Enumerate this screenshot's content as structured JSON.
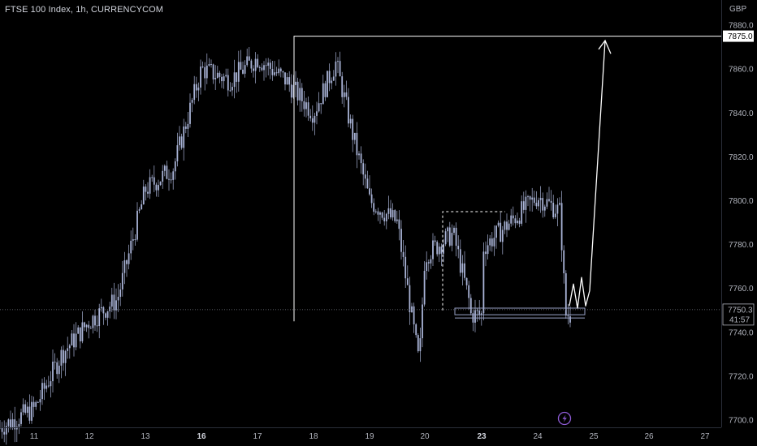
{
  "header": {
    "title": "FTSE 100 Index, 1h, CURRENCYCOM"
  },
  "colors": {
    "background": "#000000",
    "candle": "#a9b3d6",
    "line": "#ffffff",
    "label_bg": "#ffffff",
    "label_text": "#000000",
    "axis_text": "#b2b5be",
    "replay_icon": "#8e5bd6"
  },
  "icons": {
    "replay": "lightning-bolt-icon"
  },
  "chart_data": {
    "type": "candlestick",
    "currency": "GBP",
    "ylim": [
      7690,
      7890
    ],
    "y_ticks": [
      7700.0,
      7720.0,
      7740.0,
      7760.0,
      7780.0,
      7800.0,
      7820.0,
      7840.0,
      7860.0,
      7880.0
    ],
    "x_ticks": [
      {
        "label": "11",
        "bold": false
      },
      {
        "label": "12",
        "bold": false
      },
      {
        "label": "13",
        "bold": false
      },
      {
        "label": "16",
        "bold": true
      },
      {
        "label": "17",
        "bold": false
      },
      {
        "label": "18",
        "bold": false
      },
      {
        "label": "19",
        "bold": false
      },
      {
        "label": "20",
        "bold": false
      },
      {
        "label": "23",
        "bold": true
      },
      {
        "label": "24",
        "bold": false
      },
      {
        "label": "25",
        "bold": false
      },
      {
        "label": "26",
        "bold": false
      },
      {
        "label": "27",
        "bold": false
      }
    ],
    "price_path": [
      [
        "11",
        7705
      ],
      [
        "11.5",
        7730
      ],
      [
        "12",
        7745
      ],
      [
        "12.5",
        7755
      ],
      [
        "13",
        7805
      ],
      [
        "13.5",
        7815
      ],
      [
        "16",
        7860
      ],
      [
        "16.5",
        7855
      ],
      [
        "17",
        7865
      ],
      [
        "17.5",
        7855
      ],
      [
        "18",
        7840
      ],
      [
        "18.4",
        7863
      ],
      [
        "18.7",
        7830
      ],
      [
        "19",
        7800
      ],
      [
        "19.5",
        7790
      ],
      [
        "19.9",
        7725
      ],
      [
        "20",
        7775
      ],
      [
        "20.5",
        7785
      ],
      [
        "20.8",
        7752
      ],
      [
        "21",
        7778
      ],
      [
        "23",
        7778
      ],
      [
        "23.5",
        7790
      ],
      [
        "24",
        7802
      ],
      [
        "24.4",
        7795
      ],
      [
        "24.5",
        7748
      ]
    ],
    "current_price": "7750.3",
    "countdown": "41:57",
    "target_price": "7875.0",
    "annotations": [
      {
        "kind": "target-line",
        "price": 7875.0
      },
      {
        "kind": "dashed-range",
        "top": 7795,
        "bottom": 7750
      },
      {
        "kind": "support-zone",
        "top": 7751,
        "bottom": 7748
      },
      {
        "kind": "projection-arrow",
        "from": 7750,
        "to": 7875
      }
    ]
  }
}
